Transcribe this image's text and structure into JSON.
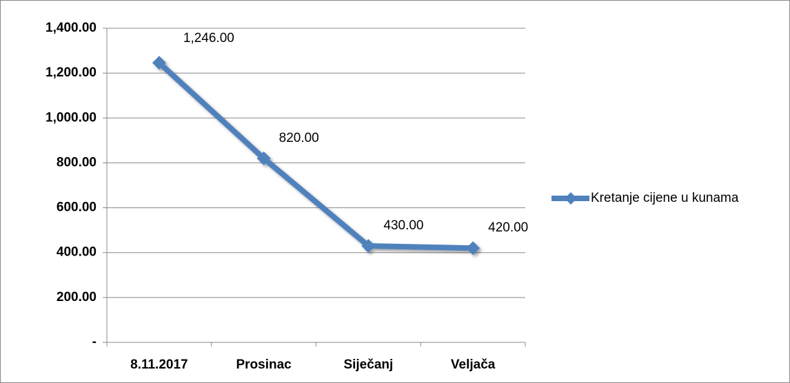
{
  "chart_data": {
    "type": "line",
    "categories": [
      "8.11.2017",
      "Prosinac",
      "Siječanj",
      "Veljača"
    ],
    "series": [
      {
        "name": "Kretanje cijene u kunama",
        "color": "#4f81bd",
        "values": [
          1246,
          820,
          430,
          420
        ],
        "value_labels": [
          "1,246.00",
          "820.00",
          "430.00",
          "420.00"
        ]
      }
    ],
    "ylim": [
      0,
      1400
    ],
    "yticks": [
      {
        "value": 0,
        "label": "-"
      },
      {
        "value": 200,
        "label": "200.00"
      },
      {
        "value": 400,
        "label": "400.00"
      },
      {
        "value": 600,
        "label": "600.00"
      },
      {
        "value": 800,
        "label": "800.00"
      },
      {
        "value": 1000,
        "label": "1,000.00"
      },
      {
        "value": 1200,
        "label": "1,200.00"
      },
      {
        "value": 1400,
        "label": "1,400.00"
      }
    ],
    "grid": true,
    "legend": "right"
  }
}
